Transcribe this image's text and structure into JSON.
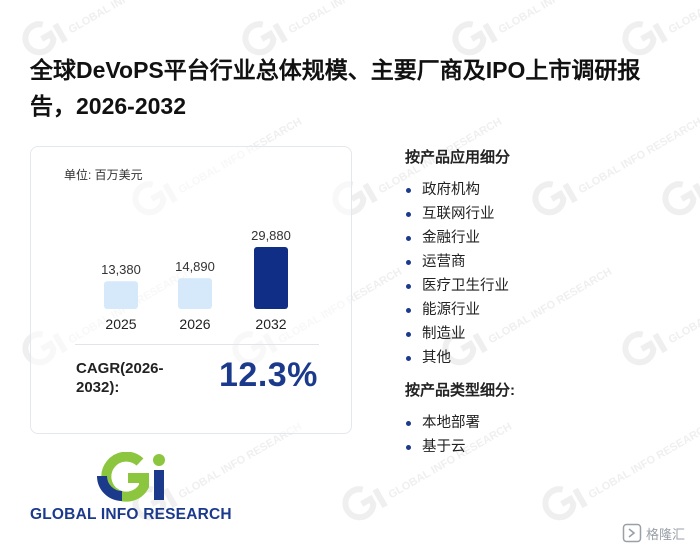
{
  "title": "全球DeVoPS平台行业总体规模、主要厂商及IPO上市调研报告，2026-2032",
  "chart_data": {
    "type": "bar",
    "unit_label": "单位: 百万美元",
    "categories": [
      "2025",
      "2026",
      "2032"
    ],
    "values": [
      13380,
      14890,
      29880
    ],
    "value_labels": [
      "13,380",
      "14,890",
      "29,880"
    ],
    "ylim": [
      0,
      29880
    ],
    "bar_colors": [
      "#d6e9fb",
      "#d6e9fb",
      "#102e86"
    ],
    "cagr_label": "CAGR(2026-2032):",
    "cagr_value": "12.3%"
  },
  "segments": {
    "application_title": "按产品应用细分",
    "application_items": [
      "政府机构",
      "互联网行业",
      "金融行业",
      "运营商",
      "医疗卫生行业",
      "能源行业",
      "制造业",
      "其他"
    ],
    "type_title": "按产品类型细分:",
    "type_items": [
      "本地部署",
      "基于云"
    ]
  },
  "logo": {
    "name": "GLOBAL INFO RESEARCH",
    "icon": "gi-logo-icon"
  },
  "watermark": {
    "text": "GLOBAL INFO RESEARCH"
  },
  "corner": {
    "text": "格隆汇",
    "icon": "gelonghui-icon"
  },
  "colors": {
    "accent": "#1b3a8c",
    "logo_green": "#8cc63f",
    "bar_light": "#d6e9fb",
    "bar_dark": "#102e86"
  }
}
